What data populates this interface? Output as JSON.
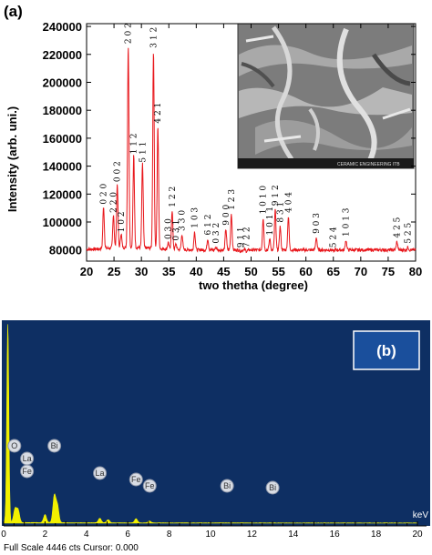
{
  "panel_a": {
    "label": "(a)",
    "ylabel": "Intensity (arb. uni.)",
    "xlabel": "two thetha (degree)",
    "x_ticks": [
      "20",
      "25",
      "30",
      "35",
      "40",
      "45",
      "50",
      "55",
      "60",
      "65",
      "70",
      "75",
      "80"
    ],
    "y_ticks": [
      "80000",
      "100000",
      "120000",
      "140000",
      "160000",
      "180000",
      "200000",
      "220000",
      "240000"
    ],
    "inset_caption": "CERAMIC ENGINEERING ITB"
  },
  "panel_b": {
    "label": "(b)",
    "unit": "keV",
    "x_ticks": [
      "0",
      "2",
      "4",
      "6",
      "8",
      "10",
      "12",
      "14",
      "16",
      "18",
      "20"
    ],
    "status": "Full Scale 4446 cts Cursor: 0.000"
  },
  "colors": {
    "xrd_line": "#e8161b",
    "eds_background": "#0e2f63",
    "eds_spectrum": "#f2f000",
    "label_box": "#1a4f9c"
  },
  "chart_data": [
    {
      "type": "line",
      "title": "",
      "xlabel": "two thetha (degree)",
      "ylabel": "Intensity (arb. uni.)",
      "xlim": [
        20,
        80
      ],
      "ylim": [
        72000,
        242000
      ],
      "baseline": 80000,
      "peaks": [
        {
          "x": 23.1,
          "y": 110000,
          "label": "020"
        },
        {
          "x": 24.9,
          "y": 104000,
          "label": "220"
        },
        {
          "x": 25.6,
          "y": 126000,
          "label": "002"
        },
        {
          "x": 26.3,
          "y": 90000,
          "label": "102"
        },
        {
          "x": 27.6,
          "y": 225000,
          "label": "202"
        },
        {
          "x": 28.6,
          "y": 146000,
          "label": "112"
        },
        {
          "x": 30.2,
          "y": 140000,
          "label": "511"
        },
        {
          "x": 32.2,
          "y": 222000,
          "label": "312"
        },
        {
          "x": 33.0,
          "y": 168000,
          "label": "421"
        },
        {
          "x": 34.9,
          "y": 85000,
          "label": "030"
        },
        {
          "x": 35.6,
          "y": 108000,
          "label": "122"
        },
        {
          "x": 36.3,
          "y": 84000,
          "label": "031"
        },
        {
          "x": 37.4,
          "y": 91000,
          "label": "330"
        },
        {
          "x": 39.7,
          "y": 93000,
          "label": "103"
        },
        {
          "x": 42.1,
          "y": 88000,
          "label": "612"
        },
        {
          "x": 43.6,
          "y": 82000,
          "label": "032"
        },
        {
          "x": 45.4,
          "y": 95000,
          "label": "900"
        },
        {
          "x": 46.4,
          "y": 106000,
          "label": "123"
        },
        {
          "x": 48.1,
          "y": 79000,
          "label": "911"
        },
        {
          "x": 49.2,
          "y": 79000,
          "label": "722"
        },
        {
          "x": 52.2,
          "y": 103000,
          "label": "1010"
        },
        {
          "x": 53.4,
          "y": 88000,
          "label": "1011"
        },
        {
          "x": 54.4,
          "y": 109000,
          "label": "912"
        },
        {
          "x": 55.3,
          "y": 97000,
          "label": "831"
        },
        {
          "x": 56.8,
          "y": 104000,
          "label": "404"
        },
        {
          "x": 61.9,
          "y": 89000,
          "label": "903"
        },
        {
          "x": 65.0,
          "y": 79000,
          "label": "524"
        },
        {
          "x": 67.3,
          "y": 87000,
          "label": "1013"
        },
        {
          "x": 76.6,
          "y": 86000,
          "label": "425"
        },
        {
          "x": 78.6,
          "y": 82000,
          "label": "525"
        }
      ]
    },
    {
      "type": "line",
      "title": "",
      "xlabel": "keV",
      "ylabel": "",
      "xlim": [
        0,
        20
      ],
      "peaks": [
        {
          "x": 0.2,
          "y": 4446
        },
        {
          "x": 0.55,
          "y": 300
        },
        {
          "x": 0.7,
          "y": 280
        },
        {
          "x": 2.0,
          "y": 180
        },
        {
          "x": 2.45,
          "y": 600
        },
        {
          "x": 2.6,
          "y": 380
        },
        {
          "x": 4.65,
          "y": 100
        },
        {
          "x": 5.05,
          "y": 70
        },
        {
          "x": 6.4,
          "y": 90
        },
        {
          "x": 7.05,
          "y": 40
        }
      ],
      "element_markers": [
        {
          "label": "O",
          "x": 0.52
        },
        {
          "label": "La",
          "x": 0.6
        },
        {
          "label": "Fe",
          "x": 0.6
        },
        {
          "label": "Bi",
          "x": 2.45
        },
        {
          "label": "La",
          "x": 4.65
        },
        {
          "label": "Fe",
          "x": 6.4
        },
        {
          "label": "Fe",
          "x": 7.06
        },
        {
          "label": "Bi",
          "x": 10.8
        },
        {
          "label": "Bi",
          "x": 13.0
        }
      ]
    }
  ]
}
